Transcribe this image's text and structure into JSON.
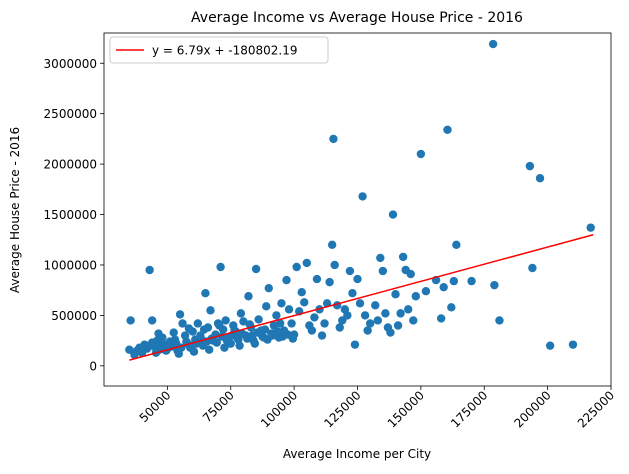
{
  "chart_data": {
    "type": "scatter",
    "title": "Average Income vs Average House Price - 2016",
    "xlabel": "Average Income per City",
    "ylabel": "Average House Price - 2016",
    "xlim": [
      25000,
      225000
    ],
    "ylim": [
      -200000,
      3300000
    ],
    "xticks": [
      50000,
      75000,
      100000,
      125000,
      150000,
      175000,
      200000,
      225000
    ],
    "yticks": [
      0,
      500000,
      1000000,
      1500000,
      2000000,
      2500000,
      3000000
    ],
    "grid": false,
    "legend": {
      "placement": "top-left",
      "entries": [
        "y = 6.79x + -180802.19"
      ]
    },
    "colors": {
      "points": "#1f77b4",
      "regression": "#ff0000"
    },
    "regression": {
      "slope": 6.79,
      "intercept": -180802.19,
      "x_range": [
        35000,
        218000
      ]
    },
    "series": [
      {
        "values": [
          [
            35000,
            160000
          ],
          [
            35500,
            450000
          ],
          [
            37000,
            110000
          ],
          [
            38000,
            150000
          ],
          [
            39000,
            180000
          ],
          [
            40000,
            130000
          ],
          [
            41000,
            210000
          ],
          [
            42000,
            170000
          ],
          [
            43000,
            950000
          ],
          [
            44000,
            450000
          ],
          [
            44000,
            230000
          ],
          [
            45000,
            190000
          ],
          [
            46000,
            250000
          ],
          [
            47000,
            160000
          ],
          [
            48000,
            280000
          ],
          [
            49000,
            210000
          ],
          [
            50000,
            170000
          ],
          [
            51000,
            240000
          ],
          [
            52000,
            200000
          ],
          [
            53000,
            260000
          ],
          [
            54000,
            150000
          ],
          [
            55000,
            510000
          ],
          [
            56000,
            420000
          ],
          [
            57000,
            300000
          ],
          [
            58000,
            220000
          ],
          [
            59000,
            180000
          ],
          [
            60000,
            340000
          ],
          [
            61000,
            260000
          ],
          [
            62000,
            420000
          ],
          [
            63000,
            300000
          ],
          [
            64000,
            200000
          ],
          [
            65000,
            720000
          ],
          [
            66000,
            380000
          ],
          [
            67000,
            550000
          ],
          [
            68000,
            250000
          ],
          [
            69000,
            310000
          ],
          [
            70000,
            420000
          ],
          [
            71000,
            980000
          ],
          [
            72000,
            360000
          ],
          [
            73000,
            450000
          ],
          [
            74000,
            280000
          ],
          [
            75000,
            220000
          ],
          [
            76000,
            400000
          ],
          [
            77000,
            340000
          ],
          [
            78000,
            260000
          ],
          [
            79000,
            520000
          ],
          [
            80000,
            440000
          ],
          [
            81000,
            300000
          ],
          [
            82000,
            690000
          ],
          [
            83000,
            380000
          ],
          [
            84000,
            250000
          ],
          [
            85000,
            960000
          ],
          [
            86000,
            460000
          ],
          [
            87000,
            350000
          ],
          [
            88000,
            280000
          ],
          [
            89000,
            590000
          ],
          [
            90000,
            770000
          ],
          [
            91000,
            320000
          ],
          [
            92000,
            400000
          ],
          [
            93000,
            500000
          ],
          [
            94000,
            280000
          ],
          [
            95000,
            620000
          ],
          [
            96000,
            350000
          ],
          [
            97000,
            850000
          ],
          [
            98000,
            560000
          ],
          [
            99000,
            420000
          ],
          [
            100000,
            310000
          ],
          [
            101000,
            980000
          ],
          [
            102000,
            540000
          ],
          [
            103000,
            730000
          ],
          [
            104000,
            630000
          ],
          [
            105000,
            1020000
          ],
          [
            106000,
            400000
          ],
          [
            107000,
            350000
          ],
          [
            108000,
            480000
          ],
          [
            109000,
            860000
          ],
          [
            110000,
            560000
          ],
          [
            111000,
            300000
          ],
          [
            112000,
            420000
          ],
          [
            113000,
            620000
          ],
          [
            114000,
            830000
          ],
          [
            115000,
            1200000
          ],
          [
            115500,
            2250000
          ],
          [
            116000,
            1000000
          ],
          [
            117000,
            600000
          ],
          [
            118000,
            380000
          ],
          [
            119000,
            450000
          ],
          [
            120000,
            560000
          ],
          [
            121000,
            500000
          ],
          [
            122000,
            940000
          ],
          [
            123000,
            720000
          ],
          [
            124000,
            210000
          ],
          [
            125000,
            860000
          ],
          [
            126000,
            620000
          ],
          [
            127000,
            1680000
          ],
          [
            128000,
            500000
          ],
          [
            129000,
            350000
          ],
          [
            130000,
            420000
          ],
          [
            132000,
            600000
          ],
          [
            133000,
            450000
          ],
          [
            134000,
            1070000
          ],
          [
            135000,
            940000
          ],
          [
            136000,
            520000
          ],
          [
            137000,
            380000
          ],
          [
            138000,
            330000
          ],
          [
            139000,
            1500000
          ],
          [
            140000,
            710000
          ],
          [
            141000,
            400000
          ],
          [
            142000,
            520000
          ],
          [
            143000,
            1080000
          ],
          [
            144000,
            950000
          ],
          [
            145000,
            560000
          ],
          [
            146000,
            910000
          ],
          [
            147000,
            450000
          ],
          [
            148000,
            690000
          ],
          [
            150000,
            2100000
          ],
          [
            152000,
            740000
          ],
          [
            156000,
            850000
          ],
          [
            158000,
            470000
          ],
          [
            159000,
            780000
          ],
          [
            160500,
            2340000
          ],
          [
            162000,
            580000
          ],
          [
            163000,
            840000
          ],
          [
            164000,
            1200000
          ],
          [
            170000,
            840000
          ],
          [
            178500,
            3190000
          ],
          [
            179000,
            800000
          ],
          [
            181000,
            450000
          ],
          [
            193000,
            1980000
          ],
          [
            194000,
            970000
          ],
          [
            197000,
            1860000
          ],
          [
            201000,
            200000
          ],
          [
            210000,
            210000
          ],
          [
            217000,
            1370000
          ],
          [
            39500,
            140000
          ],
          [
            42500,
            190000
          ],
          [
            45500,
            130000
          ],
          [
            47500,
            210000
          ],
          [
            49500,
            150000
          ],
          [
            51500,
            190000
          ],
          [
            53500,
            220000
          ],
          [
            55500,
            180000
          ],
          [
            57500,
            240000
          ],
          [
            59500,
            200000
          ],
          [
            61500,
            220000
          ],
          [
            63500,
            260000
          ],
          [
            65500,
            240000
          ],
          [
            67500,
            270000
          ],
          [
            69500,
            230000
          ],
          [
            71500,
            290000
          ],
          [
            73500,
            250000
          ],
          [
            75500,
            300000
          ],
          [
            77500,
            280000
          ],
          [
            79500,
            320000
          ],
          [
            81500,
            270000
          ],
          [
            83500,
            300000
          ],
          [
            85500,
            330000
          ],
          [
            87500,
            290000
          ],
          [
            89500,
            260000
          ],
          [
            91500,
            300000
          ],
          [
            93500,
            340000
          ],
          [
            95500,
            290000
          ],
          [
            97500,
            310000
          ],
          [
            99500,
            270000
          ],
          [
            46500,
            320000
          ],
          [
            52500,
            330000
          ],
          [
            58500,
            370000
          ],
          [
            64500,
            360000
          ],
          [
            70500,
            400000
          ],
          [
            76500,
            350000
          ],
          [
            82500,
            410000
          ],
          [
            88500,
            360000
          ],
          [
            94500,
            420000
          ],
          [
            54500,
            120000
          ],
          [
            60500,
            140000
          ],
          [
            66500,
            160000
          ],
          [
            72500,
            180000
          ],
          [
            78500,
            200000
          ],
          [
            84500,
            220000
          ]
        ]
      }
    ]
  }
}
